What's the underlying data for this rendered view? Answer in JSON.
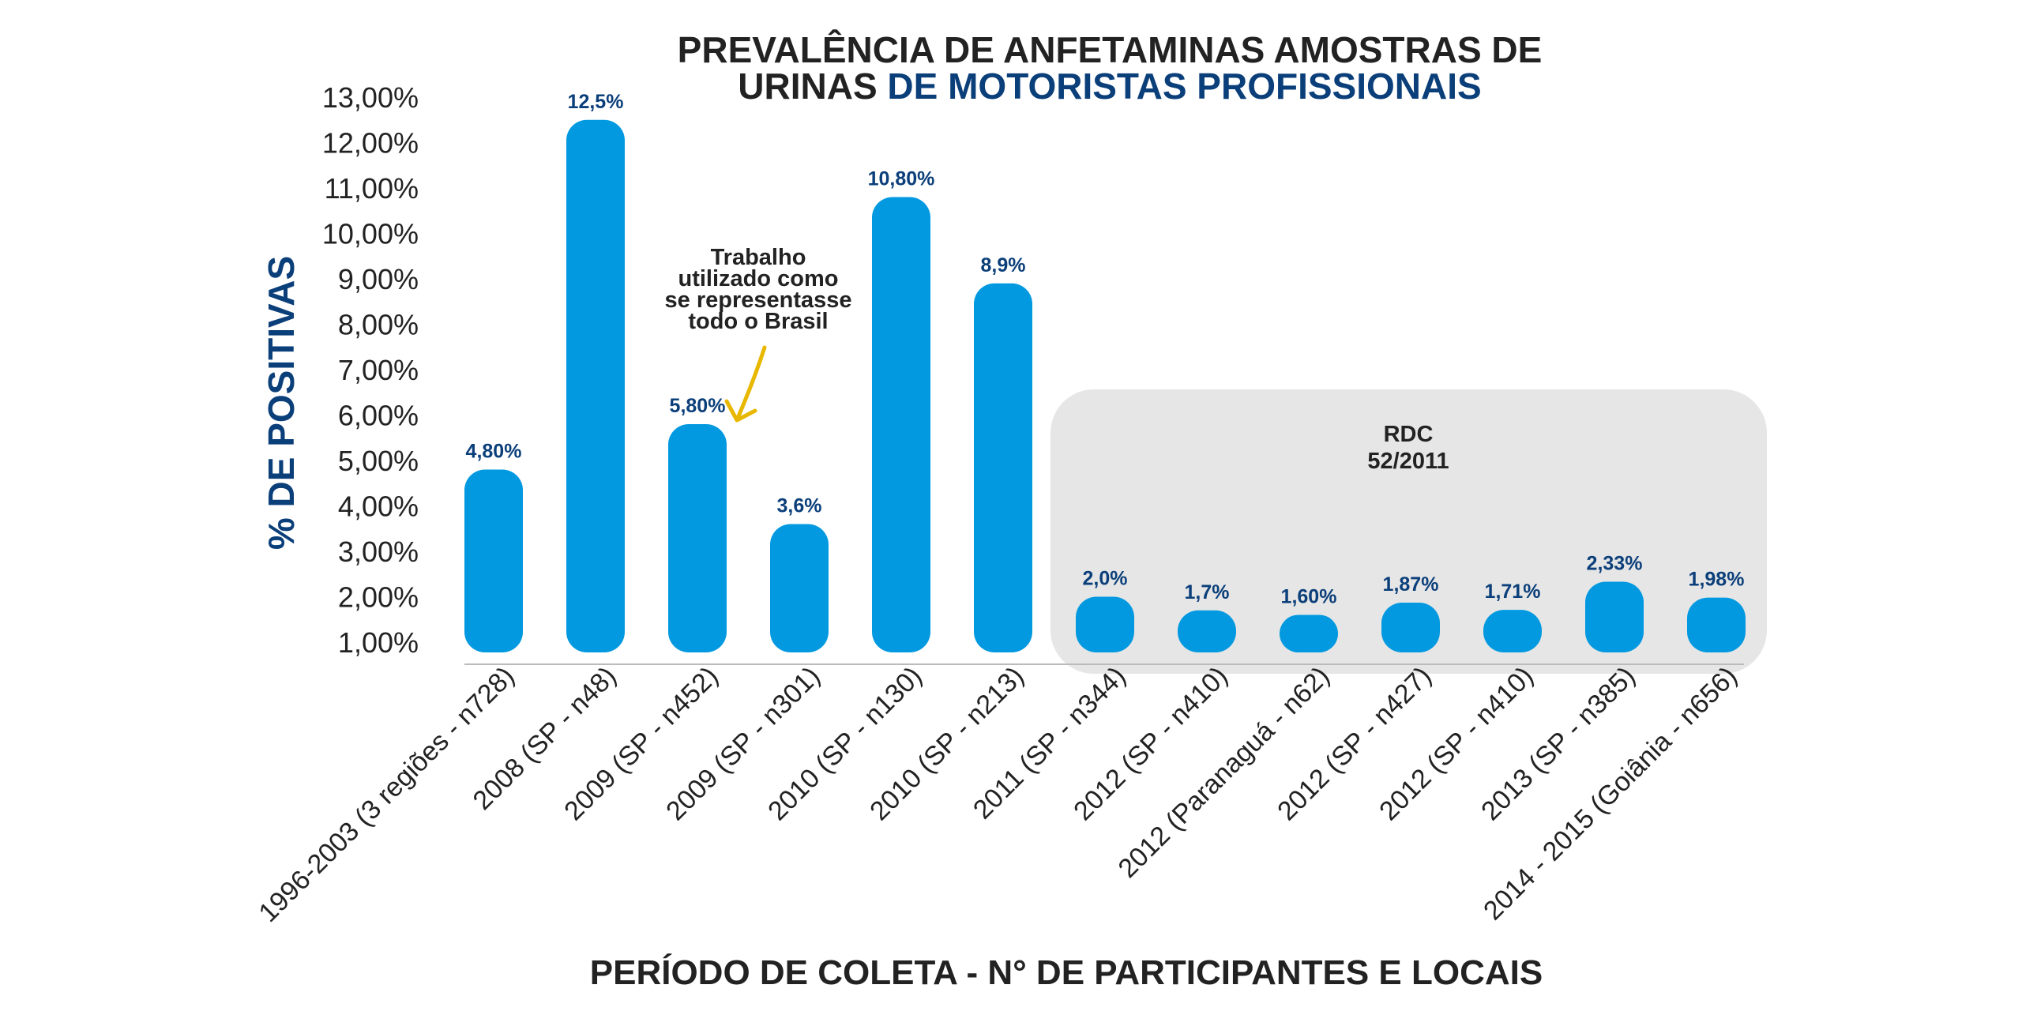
{
  "chart_data": {
    "type": "bar",
    "title_line1": "PREVALÊNCIA DE ANFETAMINAS AMOSTRAS DE",
    "title_line2_plain": "URINAS ",
    "title_line2_accent": "DE MOTORISTAS PROFISSIONAIS",
    "xlabel": "PERÍODO DE COLETA - N° DE PARTICIPANTES E LOCAIS",
    "ylabel": "% DE POSITIVAS",
    "ylim": [
      1,
      13
    ],
    "y_ticks": [
      1,
      2,
      3,
      4,
      5,
      6,
      7,
      8,
      9,
      10,
      11,
      12,
      13
    ],
    "y_tick_labels": [
      "1,00%",
      "2,00%",
      "3,00%",
      "4,00%",
      "5,00%",
      "6,00%",
      "7,00%",
      "8,00%",
      "9,00%",
      "10,00%",
      "11,00%",
      "12,00%",
      "13,00%"
    ],
    "categories": [
      "1996-2003 (3 regiões - n728)",
      "2008 (SP - n48)",
      "2009 (SP - n452)",
      "2009 (SP - n301)",
      "2010 (SP - n130)",
      "2010 (SP - n213)",
      "2011 (SP - n344)",
      "2012 (SP - n410)",
      "2012 (Paranaguá - n62)",
      "2012 (SP - n427)",
      "2012 (SP - n410)",
      "2013 (SP - n385)",
      "2014 - 2015 (Goiânia - n656)"
    ],
    "values": [
      4.8,
      12.5,
      5.8,
      3.6,
      10.8,
      8.9,
      2.0,
      1.7,
      1.6,
      1.87,
      1.71,
      2.33,
      1.98
    ],
    "value_labels": [
      "4,80%",
      "12,5%",
      "5,80%",
      "3,6%",
      "10,80%",
      "8,9%",
      "2,0%",
      "1,7%",
      "1,60%",
      "1,87%",
      "1,71%",
      "2,33%",
      "1,98%"
    ],
    "grid": false,
    "legend": "none",
    "colors": {
      "bar": "#0299e0",
      "title": "#222222",
      "accent": "#0b3f7a",
      "data_label": "#0b3f7a",
      "shaded_region": "#e6e6e6",
      "axis_line": "#bbbbbb",
      "arrow": "#e8b800"
    },
    "annotations": [
      {
        "type": "text-arrow",
        "lines": [
          "Trabalho",
          "utilizado como",
          "se representasse",
          "todo o Brasil"
        ],
        "target_category": "2009 (SP - n452)"
      },
      {
        "type": "shaded-region",
        "lines": [
          "RDC",
          "52/2011"
        ],
        "from_category": "2011 (SP - n344)",
        "to_category": "2014 - 2015 (Goiânia - n656)"
      }
    ]
  }
}
